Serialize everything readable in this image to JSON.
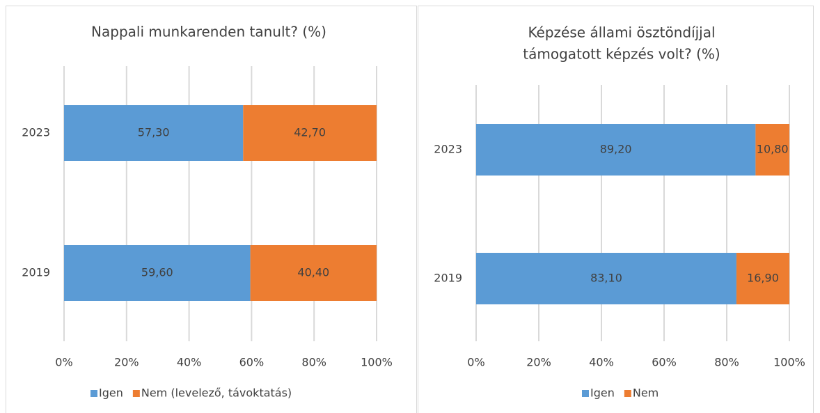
{
  "chart_data": [
    {
      "type": "stacked_barh",
      "title": [
        "Nappali munkarenden tanult?  (%)"
      ],
      "categories": [
        "2023",
        "2019"
      ],
      "series": [
        {
          "name": "Igen",
          "color": "#5b9bd5",
          "values": [
            57.3,
            59.6
          ],
          "value_labels": [
            "57,30",
            "59,60"
          ]
        },
        {
          "name": "Nem (levelező, távoktatás)",
          "color": "#ed7d31",
          "values": [
            42.7,
            40.4
          ],
          "value_labels": [
            "42,70",
            "40,40"
          ]
        }
      ],
      "xlim": [
        0,
        100
      ],
      "xticks": [
        {
          "value": 0,
          "label": "0%"
        },
        {
          "value": 20,
          "label": "20%"
        },
        {
          "value": 40,
          "label": "40%"
        },
        {
          "value": 60,
          "label": "60%"
        },
        {
          "value": 80,
          "label": "80%"
        },
        {
          "value": 100,
          "label": "100%"
        }
      ],
      "grid": true,
      "legend": "bottom"
    },
    {
      "type": "stacked_barh",
      "title": [
        "Képzése állami ösztöndíjjal",
        "támogatott képzés volt? (%)"
      ],
      "categories": [
        "2023",
        "2019"
      ],
      "series": [
        {
          "name": "Igen",
          "color": "#5b9bd5",
          "values": [
            89.2,
            83.1
          ],
          "value_labels": [
            "89,20",
            "83,10"
          ]
        },
        {
          "name": "Nem",
          "color": "#ed7d31",
          "values": [
            10.8,
            16.9
          ],
          "value_labels": [
            "10,80",
            "16,90"
          ]
        }
      ],
      "xlim": [
        0,
        100
      ],
      "xticks": [
        {
          "value": 0,
          "label": "0%"
        },
        {
          "value": 20,
          "label": "20%"
        },
        {
          "value": 40,
          "label": "40%"
        },
        {
          "value": 60,
          "label": "60%"
        },
        {
          "value": 80,
          "label": "80%"
        },
        {
          "value": 100,
          "label": "100%"
        }
      ],
      "grid": true,
      "legend": "bottom"
    }
  ]
}
